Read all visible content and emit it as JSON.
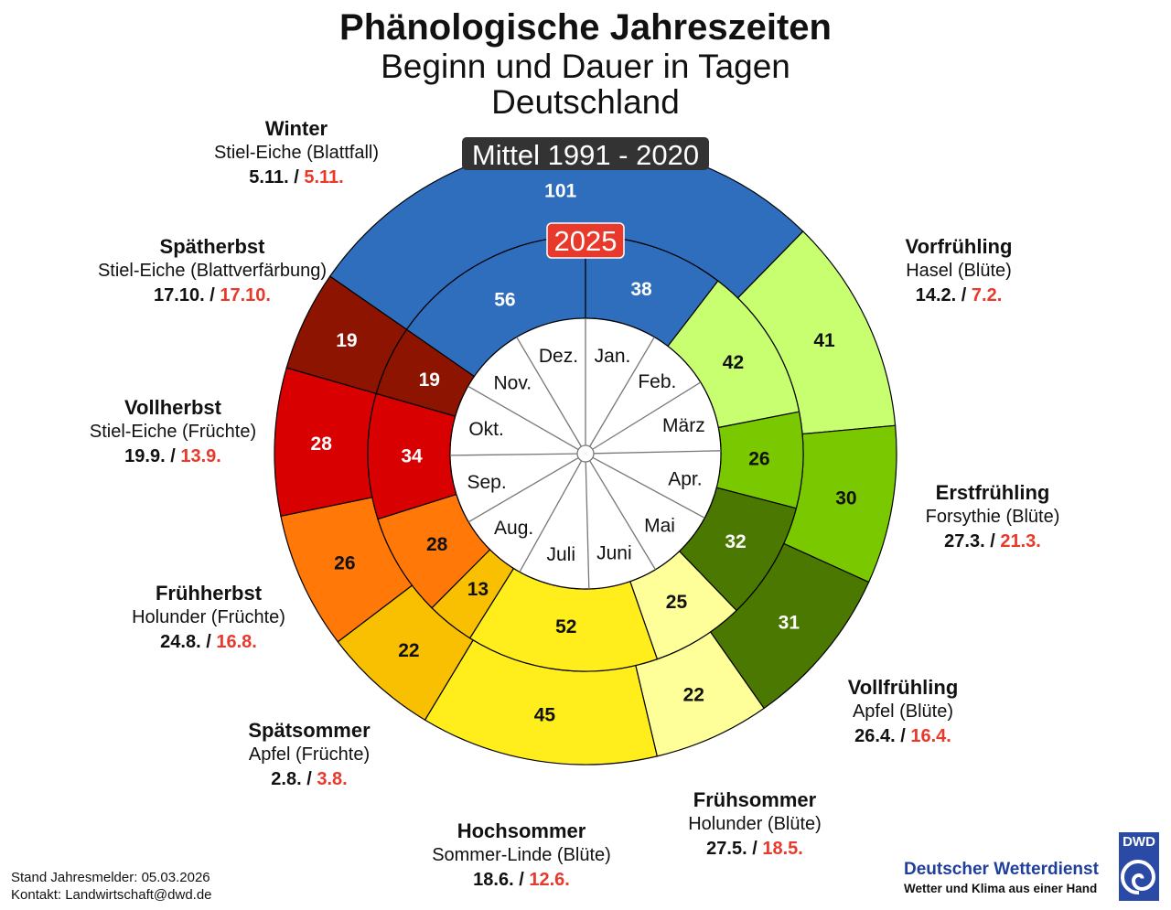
{
  "title": "Phänologische Jahreszeiten",
  "subtitle": "Beginn und Dauer in Tagen",
  "region": "Deutschland",
  "footer": {
    "stand": "Stand Jahresmelder: 05.03.2026",
    "kontakt": "Kontakt: Landwirtschaft@dwd.de"
  },
  "logo": {
    "name": "Deutscher Wetterdienst",
    "slogan": "Wetter und Klima aus einer Hand",
    "mark": "DWD"
  },
  "chart_data": {
    "type": "pie",
    "variant": "phenological-clock (two concentric donut rings)",
    "outer_ring_label": "Mittel 1991 - 2020",
    "inner_ring_label": "2025",
    "months": [
      "Jan.",
      "Feb.",
      "März",
      "Apr.",
      "Mai",
      "Juni",
      "Juli",
      "Aug.",
      "Sep.",
      "Okt.",
      "Nov.",
      "Dez."
    ],
    "seasons": [
      {
        "name": "Winter",
        "indicator": "Stiel-Eiche (Blattfall)",
        "start_mean": "5.11.",
        "start_2025": "5.11.",
        "days_mean": 101,
        "days_2025": [
          56,
          38
        ],
        "color": "#2f6dbd",
        "text": "#ffffff"
      },
      {
        "name": "Vorfrühling",
        "indicator": "Hasel (Blüte)",
        "start_mean": "14.2.",
        "start_2025": "7.2.",
        "days_mean": 41,
        "days_2025": [
          42
        ],
        "color": "#c8ff70",
        "text": "#111111"
      },
      {
        "name": "Erstfrühling",
        "indicator": "Forsythie (Blüte)",
        "start_mean": "27.3.",
        "start_2025": "21.3.",
        "days_mean": 30,
        "days_2025": [
          26
        ],
        "color": "#7ac800",
        "text": "#111111"
      },
      {
        "name": "Vollfrühling",
        "indicator": "Apfel (Blüte)",
        "start_mean": "26.4.",
        "start_2025": "16.4.",
        "days_mean": 31,
        "days_2025": [
          32
        ],
        "color": "#4a7800",
        "text": "#ffffff"
      },
      {
        "name": "Frühsommer",
        "indicator": "Holunder (Blüte)",
        "start_mean": "27.5.",
        "start_2025": "18.5.",
        "days_mean": 22,
        "days_2025": [
          25
        ],
        "color": "#ffff99",
        "text": "#111111"
      },
      {
        "name": "Hochsommer",
        "indicator": "Sommer-Linde (Blüte)",
        "start_mean": "18.6.",
        "start_2025": "12.6.",
        "days_mean": 45,
        "days_2025": [
          52
        ],
        "color": "#ffed1c",
        "text": "#111111"
      },
      {
        "name": "Spätsommer",
        "indicator": "Apfel (Früchte)",
        "start_mean": "2.8.",
        "start_2025": "3.8.",
        "days_mean": 22,
        "days_2025": [
          13
        ],
        "color": "#f8c000",
        "text": "#111111"
      },
      {
        "name": "Frühherbst",
        "indicator": "Holunder (Früchte)",
        "start_mean": "24.8.",
        "start_2025": "16.8.",
        "days_mean": 26,
        "days_2025": [
          28
        ],
        "color": "#ff7808",
        "text": "#111111"
      },
      {
        "name": "Vollherbst",
        "indicator": "Stiel-Eiche (Früchte)",
        "start_mean": "19.9.",
        "start_2025": "13.9.",
        "days_mean": 28,
        "days_2025": [
          34
        ],
        "color": "#d80000",
        "text": "#ffffff"
      },
      {
        "name": "Spätherbst",
        "indicator": "Stiel-Eiche (Blattverfärbung)",
        "start_mean": "17.10.",
        "start_2025": "17.10.",
        "days_mean": 19,
        "days_2025": [
          19
        ],
        "color": "#8c1400",
        "text": "#ffffff"
      }
    ]
  }
}
